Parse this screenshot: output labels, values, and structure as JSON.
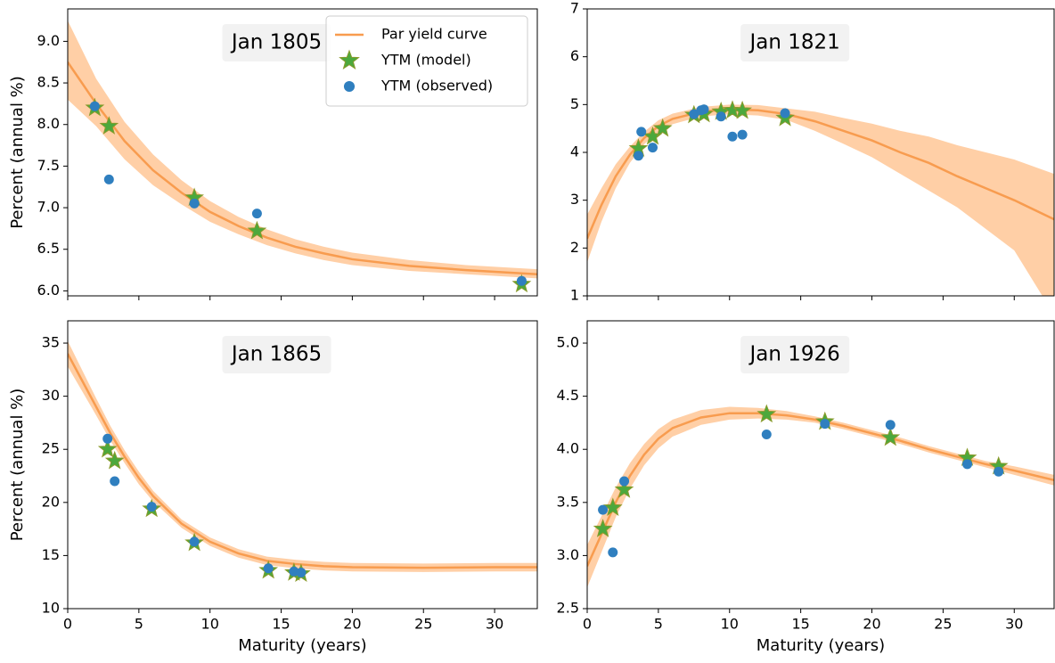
{
  "chart_data": [
    {
      "type": "line",
      "title": "Jan 1805",
      "y_label": "Percent (annual %)",
      "legend": "upper right",
      "xlim": [
        0,
        33
      ],
      "ylim": [
        5.94,
        9.39
      ],
      "xticks": [
        0,
        5,
        10,
        15,
        20,
        25,
        30
      ],
      "xtick_labels": false,
      "yticks": [
        {
          "value": 6,
          "label": "6.0"
        },
        6.5,
        {
          "value": 7,
          "label": "7.0"
        },
        7.5,
        {
          "value": 8,
          "label": "8.0"
        },
        8.5,
        {
          "value": 9,
          "label": "9.0"
        }
      ],
      "series": [
        {
          "name": "Par yield curve",
          "type": "line",
          "color": "#f89c4f",
          "band_color": "#ffcfa6",
          "x": [
            0,
            2,
            4,
            6,
            8,
            10,
            12,
            14,
            16,
            18,
            20,
            24,
            28,
            33
          ],
          "values": [
            8.75,
            8.25,
            7.8,
            7.45,
            7.18,
            6.95,
            6.78,
            6.64,
            6.53,
            6.45,
            6.38,
            6.3,
            6.25,
            6.2
          ],
          "lower": [
            8.3,
            7.98,
            7.58,
            7.27,
            7.04,
            6.83,
            6.68,
            6.55,
            6.45,
            6.37,
            6.31,
            6.24,
            6.2,
            6.15
          ],
          "upper": [
            9.25,
            8.55,
            8.03,
            7.64,
            7.33,
            7.08,
            6.89,
            6.74,
            6.62,
            6.53,
            6.46,
            6.37,
            6.31,
            6.26
          ]
        },
        {
          "name": "YTM (model)",
          "type": "scatter",
          "marker": "star",
          "color": "#4ca83c",
          "x": [
            1.9,
            2.9,
            8.9,
            13.3,
            31.9
          ],
          "values": [
            8.2,
            7.98,
            7.12,
            6.72,
            6.08
          ]
        },
        {
          "name": "YTM (observed)",
          "type": "scatter",
          "marker": "circle",
          "color": "#2f7fbf",
          "x": [
            1.9,
            2.9,
            8.9,
            13.3,
            31.9
          ],
          "values": [
            8.22,
            7.34,
            7.05,
            6.93,
            6.12
          ]
        }
      ]
    },
    {
      "type": "line",
      "title": "Jan 1821",
      "xlim": [
        0,
        32.8
      ],
      "ylim": [
        1,
        7
      ],
      "xticks": [
        0,
        5,
        10,
        15,
        20,
        25,
        30
      ],
      "xtick_labels": false,
      "yticks": [
        1,
        2,
        3,
        4,
        5,
        6,
        7
      ],
      "series": [
        {
          "type": "line",
          "color": "#f89c4f",
          "band_color": "#ffcfa6",
          "x": [
            0,
            1,
            2,
            3,
            4,
            5,
            6,
            8,
            10,
            12,
            14,
            16,
            18,
            20,
            22,
            24,
            26,
            28,
            30,
            32.8
          ],
          "values": [
            2.2,
            2.9,
            3.5,
            3.95,
            4.3,
            4.55,
            4.7,
            4.85,
            4.9,
            4.88,
            4.8,
            4.65,
            4.45,
            4.25,
            4.0,
            3.78,
            3.5,
            3.25,
            3.0,
            2.6
          ],
          "lower": [
            1.7,
            2.55,
            3.25,
            3.78,
            4.17,
            4.43,
            4.59,
            4.75,
            4.8,
            4.77,
            4.68,
            4.45,
            4.18,
            3.9,
            3.55,
            3.2,
            2.85,
            2.4,
            1.95,
            0.6
          ],
          "upper": [
            2.7,
            3.25,
            3.75,
            4.12,
            4.43,
            4.67,
            4.81,
            4.95,
            5.0,
            4.99,
            4.92,
            4.85,
            4.72,
            4.6,
            4.45,
            4.33,
            4.15,
            4.0,
            3.85,
            3.55
          ]
        },
        {
          "type": "scatter",
          "marker": "star",
          "color": "#4ca83c",
          "x": [
            3.6,
            4.6,
            5.3,
            7.5,
            8.2,
            9.4,
            10.2,
            10.9,
            13.9
          ],
          "values": [
            4.08,
            4.33,
            4.5,
            4.78,
            4.8,
            4.85,
            4.88,
            4.87,
            4.72
          ]
        },
        {
          "type": "scatter",
          "marker": "circle",
          "color": "#2f7fbf",
          "x": [
            3.6,
            3.8,
            4.6,
            7.5,
            8.0,
            8.2,
            9.4,
            10.2,
            10.9,
            13.9
          ],
          "values": [
            3.93,
            4.43,
            4.1,
            4.8,
            4.88,
            4.9,
            4.75,
            4.33,
            4.37,
            4.82
          ]
        }
      ]
    },
    {
      "type": "line",
      "title": "Jan 1865",
      "y_label": "Percent (annual %)",
      "x_label": "Maturity (years)",
      "xlim": [
        0,
        33
      ],
      "ylim": [
        10,
        37.1
      ],
      "xticks": [
        0,
        5,
        10,
        15,
        20,
        25,
        30
      ],
      "xtick_labels": true,
      "yticks": [
        10,
        15,
        20,
        25,
        30,
        35
      ],
      "series": [
        {
          "type": "line",
          "color": "#f89c4f",
          "band_color": "#ffcfa6",
          "x": [
            0,
            1,
            2,
            3,
            4,
            5,
            6,
            8,
            10,
            12,
            14,
            16,
            18,
            20,
            25,
            30,
            33
          ],
          "values": [
            34,
            31.5,
            29,
            26.5,
            24.3,
            22.3,
            20.6,
            18,
            16.3,
            15.2,
            14.5,
            14.2,
            14.0,
            13.9,
            13.85,
            13.9,
            13.9
          ],
          "lower": [
            32.8,
            30.5,
            28.2,
            25.8,
            23.7,
            21.7,
            20.1,
            17.6,
            15.9,
            14.8,
            14.1,
            13.8,
            13.6,
            13.5,
            13.45,
            13.5,
            13.5
          ],
          "upper": [
            35.2,
            32.5,
            29.8,
            27.2,
            24.9,
            22.9,
            21.1,
            18.4,
            16.7,
            15.6,
            14.9,
            14.6,
            14.4,
            14.3,
            14.25,
            14.3,
            14.3
          ]
        },
        {
          "type": "scatter",
          "marker": "star",
          "color": "#4ca83c",
          "x": [
            2.8,
            3.3,
            5.9,
            8.9,
            14.1,
            15.9,
            16.4
          ],
          "values": [
            25.0,
            23.9,
            19.4,
            16.2,
            13.6,
            13.4,
            13.3
          ]
        },
        {
          "type": "scatter",
          "marker": "circle",
          "color": "#2f7fbf",
          "x": [
            2.8,
            3.3,
            5.9,
            8.9,
            14.1,
            15.9,
            16.4
          ],
          "values": [
            26,
            22,
            19.6,
            16.3,
            13.8,
            13.5,
            13.4
          ]
        }
      ]
    },
    {
      "type": "line",
      "title": "Jan 1926",
      "x_label": "Maturity (years)",
      "xlim": [
        0,
        32.8
      ],
      "ylim": [
        2.5,
        5.21
      ],
      "xticks": [
        0,
        5,
        10,
        15,
        20,
        25,
        30
      ],
      "xtick_labels": true,
      "yticks": [
        2.5,
        {
          "value": 3,
          "label": "3.0"
        },
        3.5,
        {
          "value": 4,
          "label": "4.0"
        },
        4.5,
        {
          "value": 5,
          "label": "5.0"
        }
      ],
      "series": [
        {
          "type": "line",
          "color": "#f89c4f",
          "band_color": "#ffcfa6",
          "x": [
            0,
            1,
            2,
            3,
            4,
            5,
            6,
            8,
            10,
            12,
            14,
            16,
            18,
            20,
            22,
            24,
            26,
            28,
            30,
            32.8
          ],
          "values": [
            2.9,
            3.2,
            3.5,
            3.75,
            3.95,
            4.1,
            4.2,
            4.3,
            4.34,
            4.34,
            4.32,
            4.28,
            4.22,
            4.15,
            4.08,
            4.0,
            3.93,
            3.86,
            3.8,
            3.71
          ],
          "lower": [
            2.7,
            3.03,
            3.36,
            3.63,
            3.85,
            4.01,
            4.12,
            4.23,
            4.28,
            4.29,
            4.28,
            4.25,
            4.19,
            4.12,
            4.05,
            3.97,
            3.9,
            3.83,
            3.76,
            3.66
          ],
          "upper": [
            3.1,
            3.37,
            3.64,
            3.87,
            4.05,
            4.19,
            4.28,
            4.37,
            4.4,
            4.39,
            4.36,
            4.31,
            4.25,
            4.18,
            4.11,
            4.03,
            3.96,
            3.89,
            3.84,
            3.76
          ]
        },
        {
          "type": "scatter",
          "marker": "star",
          "color": "#4ca83c",
          "x": [
            1.1,
            1.8,
            2.6,
            12.6,
            16.7,
            21.3,
            26.7,
            28.9
          ],
          "values": [
            3.25,
            3.45,
            3.62,
            4.33,
            4.26,
            4.11,
            3.92,
            3.84
          ]
        },
        {
          "type": "scatter",
          "marker": "circle",
          "color": "#2f7fbf",
          "x": [
            1.1,
            1.8,
            2.6,
            12.6,
            16.7,
            21.3,
            26.7,
            28.9
          ],
          "values": [
            3.43,
            3.03,
            3.7,
            4.14,
            4.24,
            4.23,
            3.86,
            3.79
          ]
        }
      ]
    }
  ]
}
